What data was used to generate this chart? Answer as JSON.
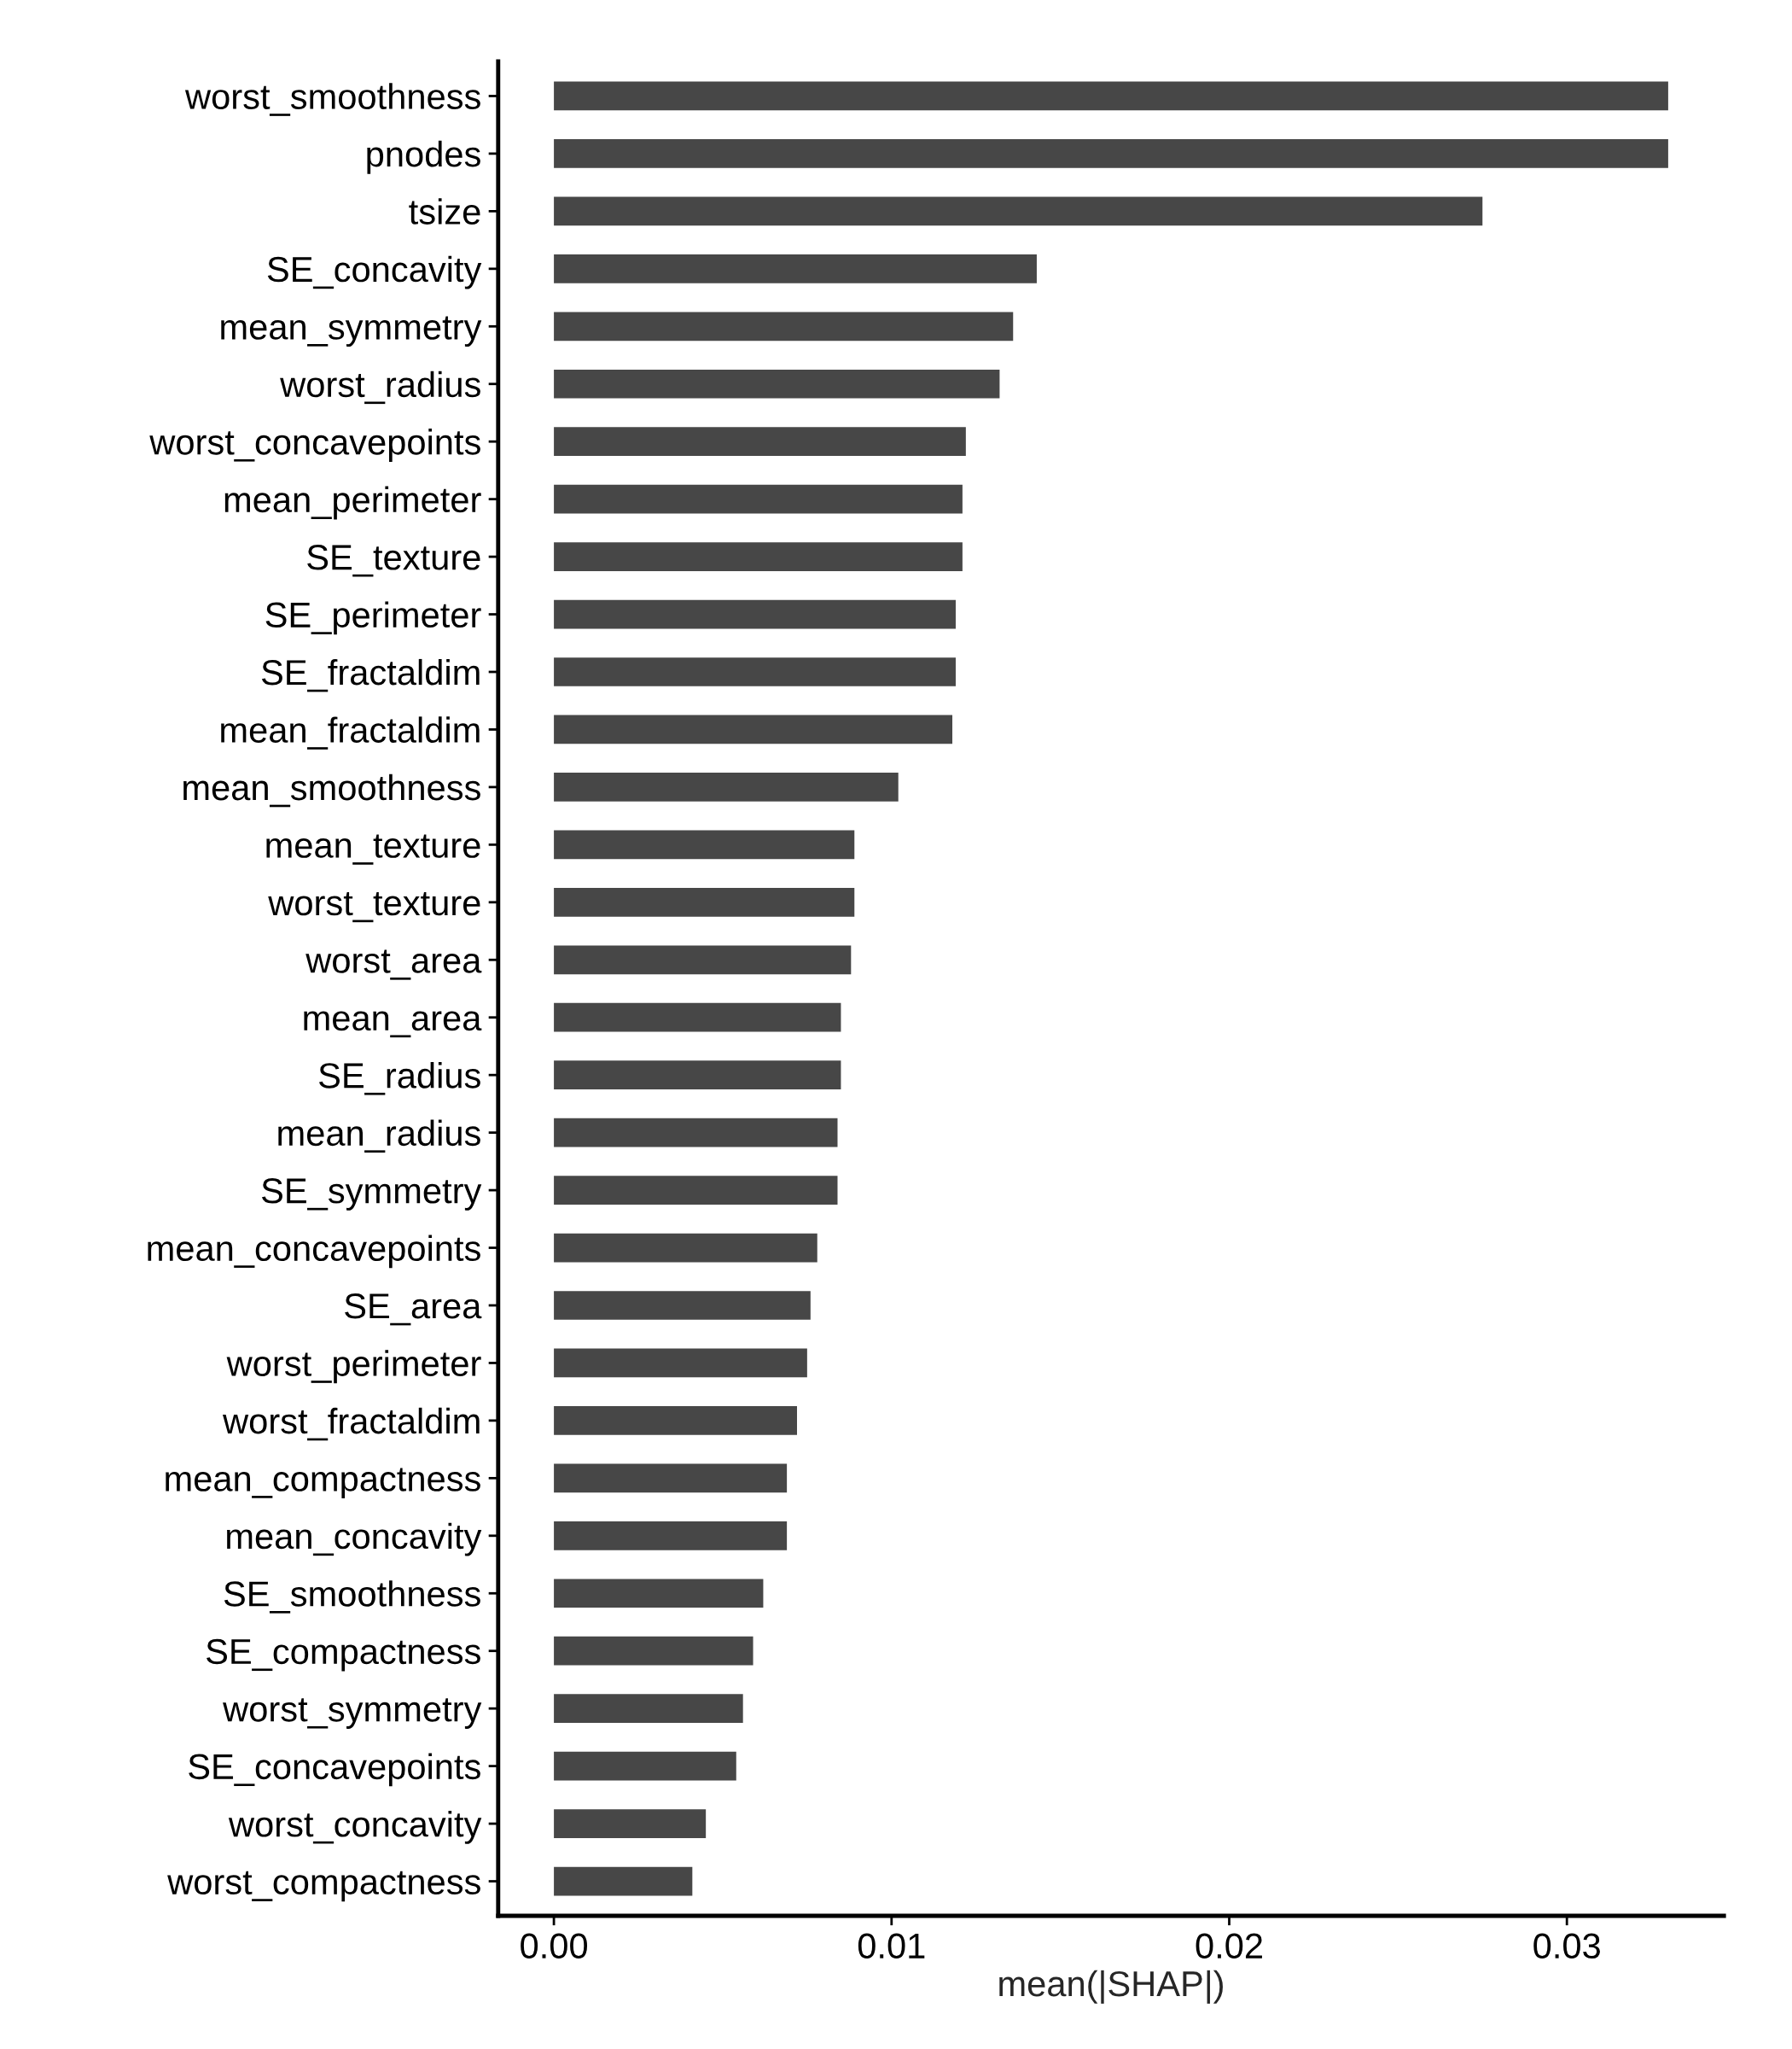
{
  "chart_data": {
    "type": "bar",
    "orientation": "horizontal",
    "xlabel": "mean(|SHAP|)",
    "categories": [
      "worst_smoothness",
      "pnodes",
      "tsize",
      "SE_concavity",
      "mean_symmetry",
      "worst_radius",
      "worst_concavepoints",
      "mean_perimeter",
      "SE_texture",
      "SE_perimeter",
      "SE_fractaldim",
      "mean_fractaldim",
      "mean_smoothness",
      "mean_texture",
      "worst_texture",
      "worst_area",
      "mean_area",
      "SE_radius",
      "mean_radius",
      "SE_symmetry",
      "mean_concavepoints",
      "SE_area",
      "worst_perimeter",
      "worst_fractaldim",
      "mean_compactness",
      "mean_concavity",
      "SE_smoothness",
      "SE_compactness",
      "worst_symmetry",
      "SE_concavepoints",
      "worst_concavity",
      "worst_compactness"
    ],
    "values": [
      0.033,
      0.033,
      0.0275,
      0.0143,
      0.0136,
      0.0132,
      0.0122,
      0.0121,
      0.0121,
      0.0119,
      0.0119,
      0.0118,
      0.0102,
      0.0089,
      0.0089,
      0.0088,
      0.0085,
      0.0085,
      0.0084,
      0.0084,
      0.0078,
      0.0076,
      0.0075,
      0.0072,
      0.0069,
      0.0069,
      0.0062,
      0.0059,
      0.0056,
      0.0054,
      0.0045,
      0.0041
    ],
    "color": "#474747",
    "xlim": [
      -0.00165,
      0.03465
    ],
    "xticks": [
      {
        "value": 0,
        "label": "0.00"
      },
      {
        "value": 0.01,
        "label": "0.01"
      },
      {
        "value": 0.02,
        "label": "0.02"
      },
      {
        "value": 0.03,
        "label": "0.03"
      }
    ],
    "grid": false
  }
}
